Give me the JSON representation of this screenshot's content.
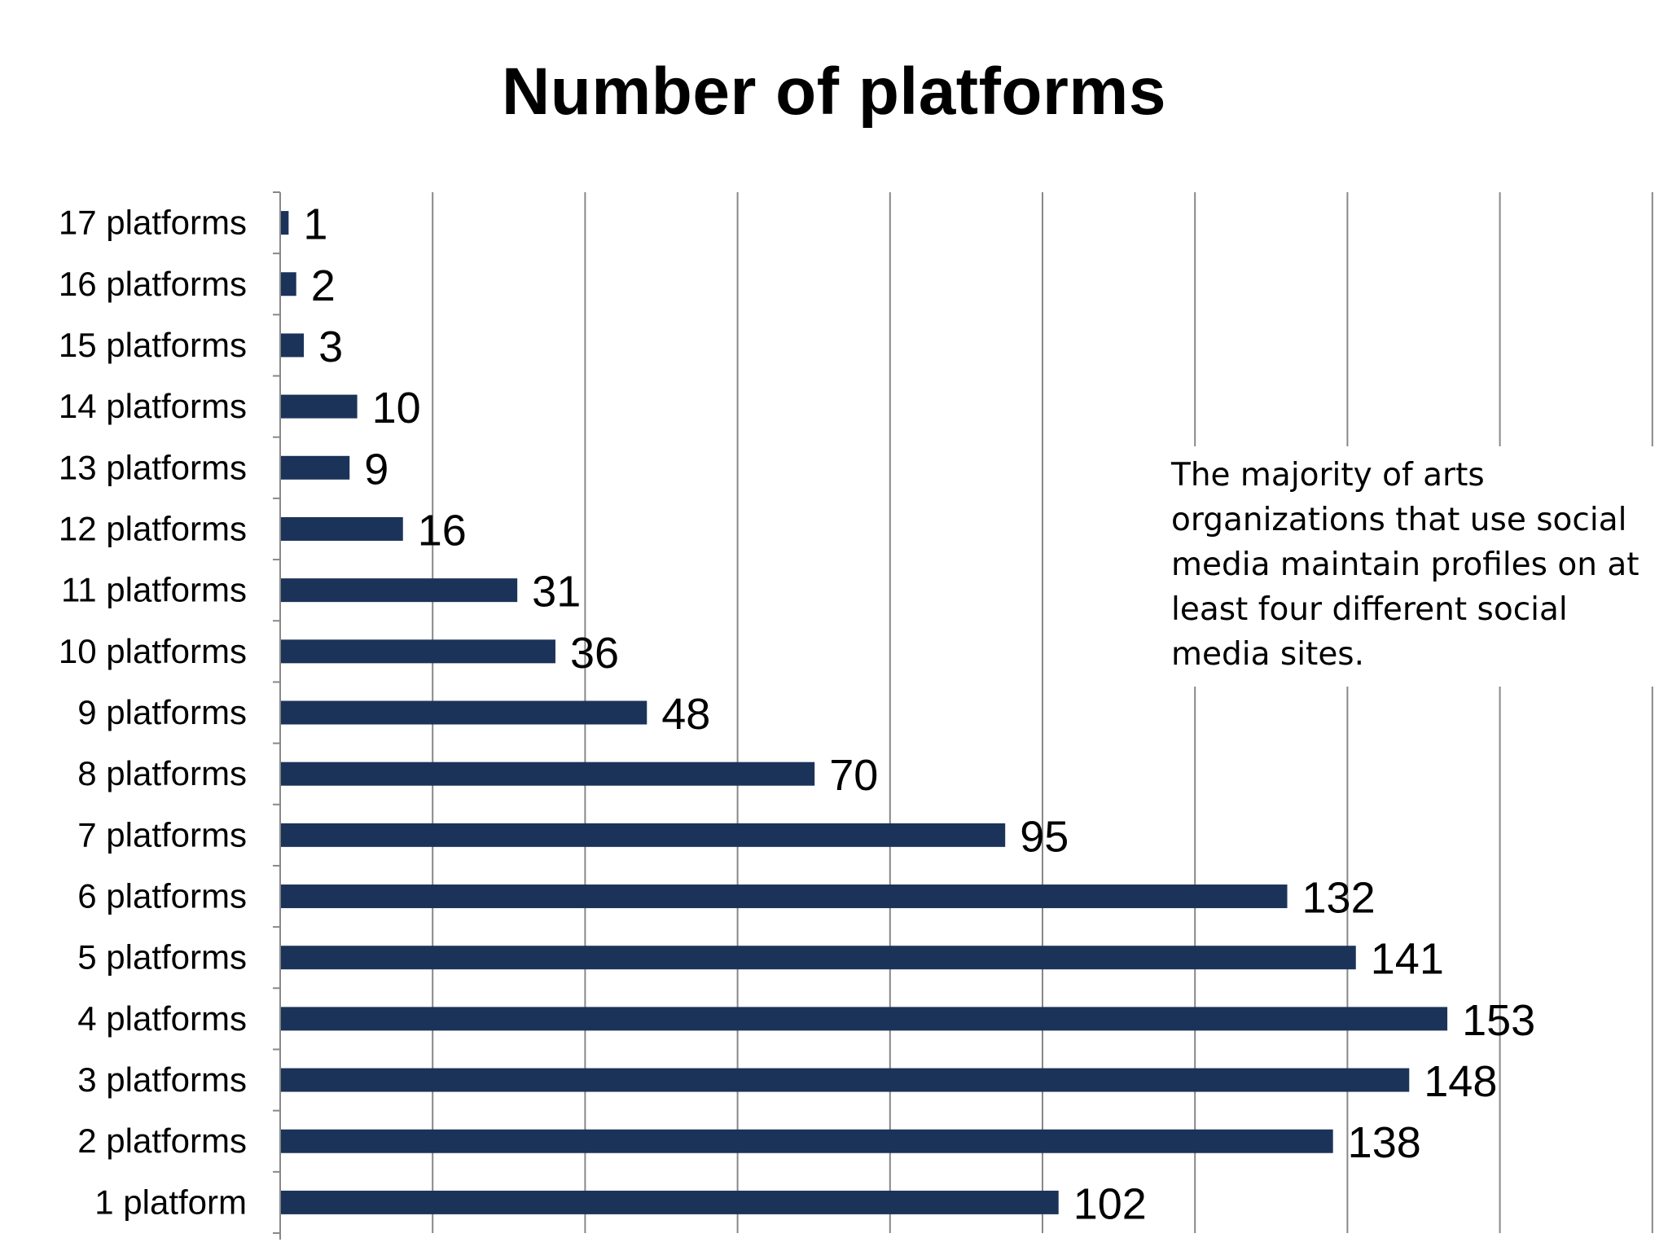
{
  "chart_data": {
    "type": "bar",
    "orientation": "horizontal",
    "title": "Number of platforms",
    "xlabel": "",
    "ylabel": "",
    "categories": [
      "17 platforms",
      "16 platforms",
      "15 platforms",
      "14 platforms",
      "13 platforms",
      "12 platforms",
      "11 platforms",
      "10 platforms",
      "9 platforms",
      "8 platforms",
      "7 platforms",
      "6 platforms",
      "5 platforms",
      "4 platforms",
      "3 platforms",
      "2 platforms",
      "1 platform"
    ],
    "values": [
      1,
      2,
      3,
      10,
      9,
      16,
      31,
      36,
      48,
      70,
      95,
      132,
      141,
      153,
      148,
      138,
      102
    ],
    "data_labels": [
      "1",
      "2",
      "3",
      "10",
      "9",
      "16",
      "31",
      "36",
      "48",
      "70",
      "95",
      "132",
      "141",
      "153",
      "148",
      "138",
      "102"
    ],
    "xlim": [
      0,
      180
    ],
    "gridlines": "vertical every 20",
    "bar_color": "#1c3359",
    "annotation": "The majority of arts organizations that use social media maintain profiles on at least four different social media sites."
  }
}
